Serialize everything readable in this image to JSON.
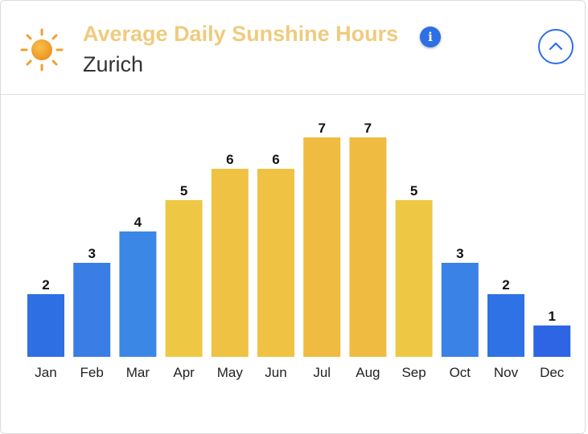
{
  "header": {
    "title": "Average Daily Sunshine Hours",
    "subtitle": "Zurich",
    "weather_icon": "sun-icon",
    "info_icon": "info-icon",
    "info_glyph": "i",
    "collapse_icon": "chevron-up-icon"
  },
  "colors": {
    "title": "#efcb7e",
    "accent_blue": "#2f6fe4",
    "bar_low": "#2f6fe4",
    "bar_mid_low": "#3b82e6",
    "bar_high": "#eec845",
    "bar_peak": "#efbb40"
  },
  "chart_data": {
    "type": "bar",
    "title": "Average Daily Sunshine Hours",
    "subtitle": "Zurich",
    "categories": [
      "Jan",
      "Feb",
      "Mar",
      "Apr",
      "May",
      "Jun",
      "Jul",
      "Aug",
      "Sep",
      "Oct",
      "Nov",
      "Dec"
    ],
    "values": [
      2,
      3,
      4,
      5,
      6,
      6,
      7,
      7,
      5,
      3,
      2,
      1
    ],
    "data_labels": [
      "2",
      "3",
      "4",
      "5",
      "6",
      "6",
      "7",
      "7",
      "5",
      "3",
      "2",
      "1"
    ],
    "bar_colors": [
      "#2f6fe4",
      "#3a7de5",
      "#3b87e6",
      "#eec845",
      "#efc243",
      "#efc243",
      "#efbb40",
      "#efbb40",
      "#eec845",
      "#3a82e5",
      "#2f72e5",
      "#2e65e4"
    ],
    "ylim": [
      0,
      7
    ],
    "grid": false,
    "legend": "none"
  }
}
